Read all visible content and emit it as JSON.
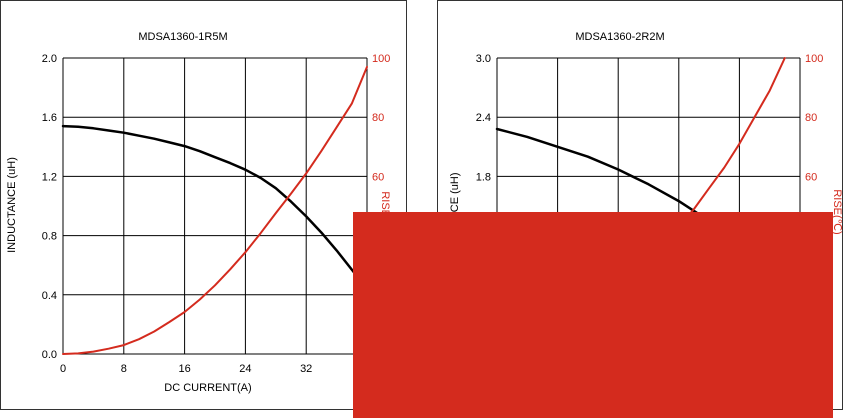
{
  "colors": {
    "inductance": "#000000",
    "temperature": "#d42b1e",
    "grid": "#000000",
    "frame": "#333333",
    "mask": "#d42b1e"
  },
  "chart_data": [
    {
      "type": "line",
      "title": "MDSA1360-1R5M",
      "xlabel": "DC CURRENT(A)",
      "ylabel": "INDUCTANCE (uH)",
      "y2label": "RISE(℃)",
      "xlim": [
        0,
        40
      ],
      "xticks": [
        "0",
        "8",
        "16",
        "24",
        "32"
      ],
      "ylim": [
        0,
        2.0
      ],
      "yticks": [
        "0.0",
        "0.4",
        "0.8",
        "1.2",
        "1.6",
        "2.0"
      ],
      "y2lim": [
        0,
        100
      ],
      "y2ticks": [
        "60",
        "80",
        "100"
      ],
      "grid": true,
      "series": [
        {
          "axis": "left",
          "color": "#000000",
          "x": [
            0,
            2,
            4,
            6,
            8,
            10,
            12,
            14,
            16,
            18,
            20,
            22,
            24,
            26,
            28,
            30,
            32,
            34,
            36,
            38,
            40
          ],
          "y": [
            1.54,
            1.535,
            1.525,
            1.51,
            1.495,
            1.475,
            1.455,
            1.43,
            1.405,
            1.37,
            1.33,
            1.29,
            1.245,
            1.19,
            1.12,
            1.03,
            0.93,
            0.82,
            0.7,
            0.57,
            0.44
          ]
        },
        {
          "axis": "right",
          "color": "#d42b1e",
          "x": [
            0,
            2,
            4,
            6,
            8,
            10,
            12,
            14,
            16,
            18,
            20,
            22,
            24,
            26,
            28,
            30,
            32,
            34,
            36,
            38,
            40
          ],
          "y": [
            0,
            0.2,
            0.8,
            1.8,
            3.0,
            5.0,
            7.6,
            10.8,
            14.2,
            18.4,
            23.2,
            28.6,
            34.4,
            40.8,
            47.6,
            54.2,
            61.0,
            68.6,
            76.6,
            84.6,
            97.0
          ]
        }
      ]
    },
    {
      "type": "line",
      "title": "MDSA1360-2R2M",
      "ylabel": "ANCE (uH)",
      "y2label": "RISE(℃)",
      "xlim": [
        0,
        40
      ],
      "ylim": [
        0,
        3.0
      ],
      "yticks": [
        "1.8",
        "2.4",
        "3.0"
      ],
      "y2lim": [
        0,
        100
      ],
      "y2ticks": [
        "60",
        "80",
        "100"
      ],
      "grid": true,
      "series": [
        {
          "axis": "left",
          "color": "#000000",
          "x": [
            0,
            4,
            8,
            12,
            16,
            20,
            24,
            28
          ],
          "y": [
            2.28,
            2.2,
            2.1,
            2.0,
            1.87,
            1.72,
            1.55,
            1.35
          ]
        },
        {
          "axis": "right",
          "color": "#d42b1e",
          "x": [
            24,
            26,
            28,
            30,
            32,
            34,
            36,
            38
          ],
          "y": [
            43,
            49,
            56,
            63,
            71,
            80,
            89,
            100
          ]
        }
      ]
    }
  ]
}
